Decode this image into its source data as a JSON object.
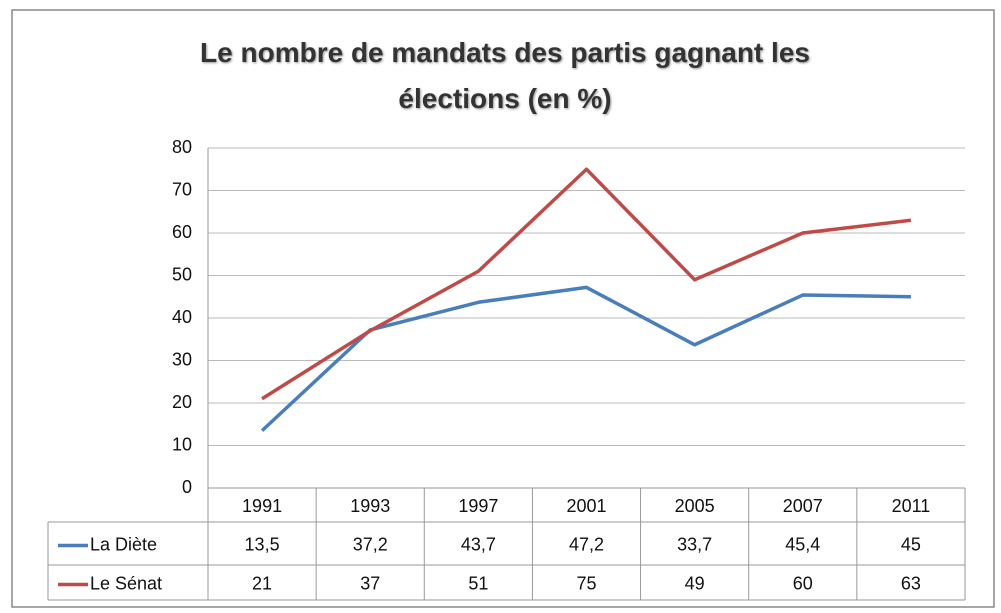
{
  "chart_data": {
    "type": "line",
    "title": "Le nombre de mandats des partis gagnant les élections (en %)",
    "categories": [
      "1991",
      "1993",
      "1997",
      "2001",
      "2005",
      "2007",
      "2011"
    ],
    "series": [
      {
        "name": "La Diète",
        "color": "#4a7ebb",
        "values": [
          13.5,
          37.2,
          43.7,
          47.2,
          33.7,
          45.4,
          45
        ],
        "value_labels": [
          "13,5",
          "37,2",
          "43,7",
          "47,2",
          "33,7",
          "45,4",
          "45"
        ]
      },
      {
        "name": "Le Sénat",
        "color": "#be4b48",
        "values": [
          21,
          37,
          51,
          75,
          49,
          60,
          63
        ]
      }
    ],
    "ylim": [
      0,
      80
    ],
    "yticks": [
      0,
      10,
      20,
      30,
      40,
      50,
      60,
      70,
      80
    ],
    "grid": true
  }
}
